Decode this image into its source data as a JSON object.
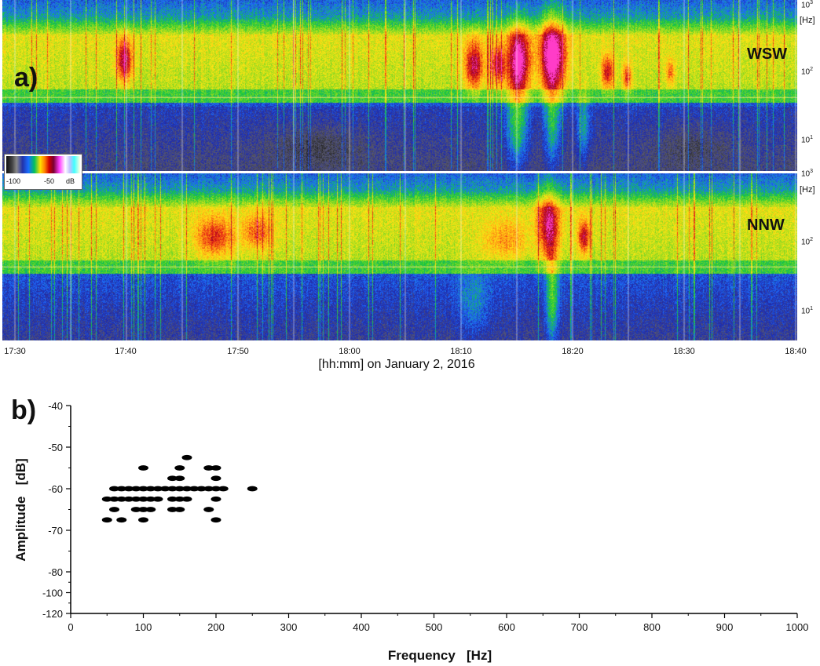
{
  "panel_a": {
    "label": "a)",
    "top_direction": "WSW",
    "bottom_direction": "NNW",
    "hz_unit": "[Hz]",
    "freq_ticks": [
      {
        "base": "10",
        "exp": "3"
      },
      {
        "base": "10",
        "exp": "2"
      },
      {
        "base": "10",
        "exp": "1"
      }
    ],
    "time_ticks": [
      "17:30",
      "17:40",
      "17:50",
      "18:00",
      "18:10",
      "18:20",
      "18:30",
      "18:40"
    ],
    "time_caption": "[hh:mm] on January 2, 2016",
    "colorbar": {
      "min_label": "-100",
      "mid_label": "-50",
      "unit": "dB"
    }
  },
  "chart_data": {
    "type": "scatter",
    "panel_label": "b)",
    "title": "",
    "xlabel": "Frequency   [Hz]",
    "ylabel": "Amplitude   [dB]",
    "xlim": [
      0,
      1000
    ],
    "ylim": [
      -120,
      -40
    ],
    "x_ticks": [
      0,
      100,
      200,
      300,
      400,
      500,
      600,
      700,
      800,
      900,
      1000
    ],
    "y_ticks": [
      -40,
      -50,
      -60,
      -70,
      -80,
      -100,
      -120
    ],
    "y_tick_labels": [
      "-40",
      "-50",
      "-60",
      "-70",
      "-80",
      "-100",
      "-120"
    ],
    "marker_color": "#000000",
    "points": [
      [
        50,
        -67.5
      ],
      [
        50,
        -62.5
      ],
      [
        60,
        -62.5
      ],
      [
        60,
        -60
      ],
      [
        60,
        -65
      ],
      [
        70,
        -67.5
      ],
      [
        70,
        -60
      ],
      [
        70,
        -62.5
      ],
      [
        80,
        -62.5
      ],
      [
        80,
        -60
      ],
      [
        90,
        -60
      ],
      [
        90,
        -62.5
      ],
      [
        90,
        -65
      ],
      [
        100,
        -55
      ],
      [
        100,
        -60
      ],
      [
        100,
        -62.5
      ],
      [
        100,
        -65
      ],
      [
        100,
        -67.5
      ],
      [
        110,
        -60
      ],
      [
        110,
        -62.5
      ],
      [
        110,
        -65
      ],
      [
        120,
        -60
      ],
      [
        120,
        -62.5
      ],
      [
        130,
        -60
      ],
      [
        140,
        -57.5
      ],
      [
        140,
        -60
      ],
      [
        140,
        -62.5
      ],
      [
        140,
        -65
      ],
      [
        150,
        -55
      ],
      [
        150,
        -57.5
      ],
      [
        150,
        -60
      ],
      [
        150,
        -62.5
      ],
      [
        150,
        -65
      ],
      [
        160,
        -52.5
      ],
      [
        160,
        -60
      ],
      [
        160,
        -62.5
      ],
      [
        170,
        -60
      ],
      [
        180,
        -60
      ],
      [
        190,
        -55
      ],
      [
        190,
        -60
      ],
      [
        190,
        -65
      ],
      [
        200,
        -55
      ],
      [
        200,
        -57.5
      ],
      [
        200,
        -60
      ],
      [
        200,
        -62.5
      ],
      [
        200,
        -67.5
      ],
      [
        210,
        -60
      ],
      [
        250,
        -60
      ]
    ]
  }
}
